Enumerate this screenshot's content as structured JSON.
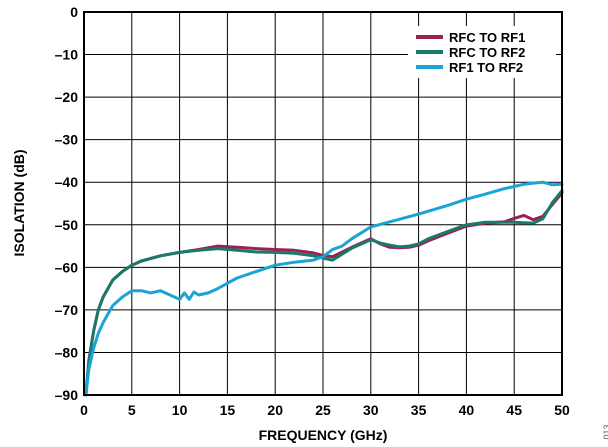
{
  "figure_id": "013",
  "chart_data": {
    "type": "line",
    "xlabel": "FREQUENCY (GHz)",
    "ylabel": "ISOLATION (dB)",
    "xlim": [
      0,
      50
    ],
    "ylim": [
      -90,
      0
    ],
    "xticks": [
      0,
      5,
      10,
      15,
      20,
      25,
      30,
      35,
      40,
      45,
      50
    ],
    "yticks": [
      0,
      -10,
      -20,
      -30,
      -40,
      -50,
      -60,
      -70,
      -80,
      -90
    ],
    "ytick_labels": [
      "0",
      "–10",
      "–20",
      "–30",
      "–40",
      "–50",
      "–60",
      "–70",
      "–80",
      "–90"
    ],
    "grid": true,
    "legend_position": "top-right",
    "series": [
      {
        "name": "RFC TO RF1",
        "color": "#9c2152",
        "x": [
          0.2,
          0.5,
          1,
          1.5,
          2,
          3,
          4,
          5,
          6,
          8,
          10,
          12,
          14,
          16,
          18,
          20,
          22,
          24,
          25,
          26,
          28,
          30,
          31,
          32,
          33,
          34,
          35,
          36,
          38,
          40,
          42,
          44,
          45,
          46,
          47,
          48,
          49,
          50
        ],
        "y": [
          -90,
          -82,
          -75,
          -70,
          -67,
          -63,
          -61,
          -59.5,
          -58.5,
          -57.3,
          -56.5,
          -55.8,
          -55,
          -55.3,
          -55.6,
          -55.8,
          -56,
          -56.6,
          -57.2,
          -57.5,
          -55.3,
          -53.3,
          -54.5,
          -55.3,
          -55.4,
          -55.3,
          -54.8,
          -53.8,
          -52,
          -50.3,
          -49.6,
          -49.3,
          -48.5,
          -47.8,
          -48.8,
          -48,
          -45.2,
          -42.5
        ]
      },
      {
        "name": "RFC TO RF2",
        "color": "#1a7a6a",
        "x": [
          0.2,
          0.5,
          1,
          1.5,
          2,
          3,
          4,
          5,
          6,
          8,
          10,
          12,
          14,
          16,
          18,
          20,
          22,
          24,
          25,
          26,
          28,
          30,
          31,
          32,
          33,
          34,
          35,
          36,
          38,
          40,
          42,
          44,
          45,
          46,
          47,
          48,
          49,
          50
        ],
        "y": [
          -90,
          -82,
          -75,
          -70,
          -67,
          -63,
          -61,
          -59.5,
          -58.5,
          -57.3,
          -56.5,
          -56,
          -55.6,
          -56,
          -56.4,
          -56.5,
          -56.7,
          -57.3,
          -57.8,
          -58.3,
          -55.5,
          -53.5,
          -54.3,
          -54.8,
          -55.2,
          -55,
          -54.5,
          -53.3,
          -51.6,
          -50,
          -49.4,
          -49.4,
          -49.4,
          -49.5,
          -49.6,
          -48.6,
          -44.8,
          -42
        ]
      },
      {
        "name": "RF1 TO RF2",
        "color": "#1aa3d6",
        "x": [
          0.2,
          0.5,
          1,
          1.5,
          2,
          3,
          4,
          5,
          6,
          7,
          8,
          9,
          10,
          10.5,
          11,
          11.5,
          12,
          13,
          14,
          16,
          18,
          20,
          22,
          24,
          25,
          26,
          27,
          28,
          30,
          32,
          35,
          38,
          40,
          42,
          44,
          45,
          46,
          47,
          48,
          49,
          50
        ],
        "y": [
          -90,
          -84,
          -79,
          -75.5,
          -73,
          -69,
          -67,
          -65.5,
          -65.5,
          -66,
          -65.5,
          -66.5,
          -67.5,
          -66,
          -67.5,
          -65.8,
          -66.5,
          -66,
          -65,
          -62.5,
          -61,
          -59.5,
          -58.8,
          -58.3,
          -57.5,
          -55.8,
          -55,
          -53.3,
          -50.5,
          -49.3,
          -47.5,
          -45.5,
          -44,
          -42.8,
          -41.5,
          -41,
          -40.5,
          -40.2,
          -40,
          -40.6,
          -40.5
        ]
      }
    ]
  }
}
